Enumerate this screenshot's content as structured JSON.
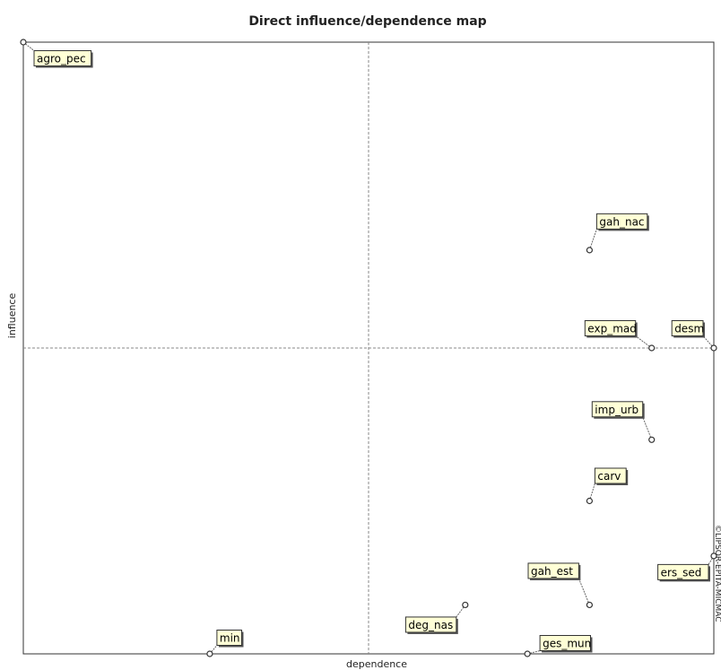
{
  "title": "Direct influence/dependence map",
  "xlabel": "dependence",
  "ylabel": "influence",
  "credit": "©LIPSOR-EPITA-MICMAC",
  "chart_data": {
    "type": "scatter",
    "title": "Direct influence/dependence map",
    "xlabel": "dependence",
    "ylabel": "influence",
    "xlim": [
      0,
      1
    ],
    "ylim": [
      0,
      1
    ],
    "grid": false,
    "median_lines": {
      "x": 0.5,
      "y": 0.5
    },
    "points": [
      {
        "label": "agro_pec",
        "x": 0.0,
        "y": 1.0
      },
      {
        "label": "gah_nac",
        "x": 0.82,
        "y": 0.66
      },
      {
        "label": "exp_mad",
        "x": 0.91,
        "y": 0.5
      },
      {
        "label": "desm",
        "x": 1.0,
        "y": 0.5
      },
      {
        "label": "imp_urb",
        "x": 0.91,
        "y": 0.35
      },
      {
        "label": "carv",
        "x": 0.82,
        "y": 0.25
      },
      {
        "label": "ers_sed",
        "x": 1.0,
        "y": 0.16
      },
      {
        "label": "gah_est",
        "x": 0.82,
        "y": 0.08
      },
      {
        "label": "deg_nas",
        "x": 0.64,
        "y": 0.08
      },
      {
        "label": "ges_mun",
        "x": 0.73,
        "y": 0.0
      },
      {
        "label": "min",
        "x": 0.27,
        "y": 0.0
      }
    ]
  }
}
